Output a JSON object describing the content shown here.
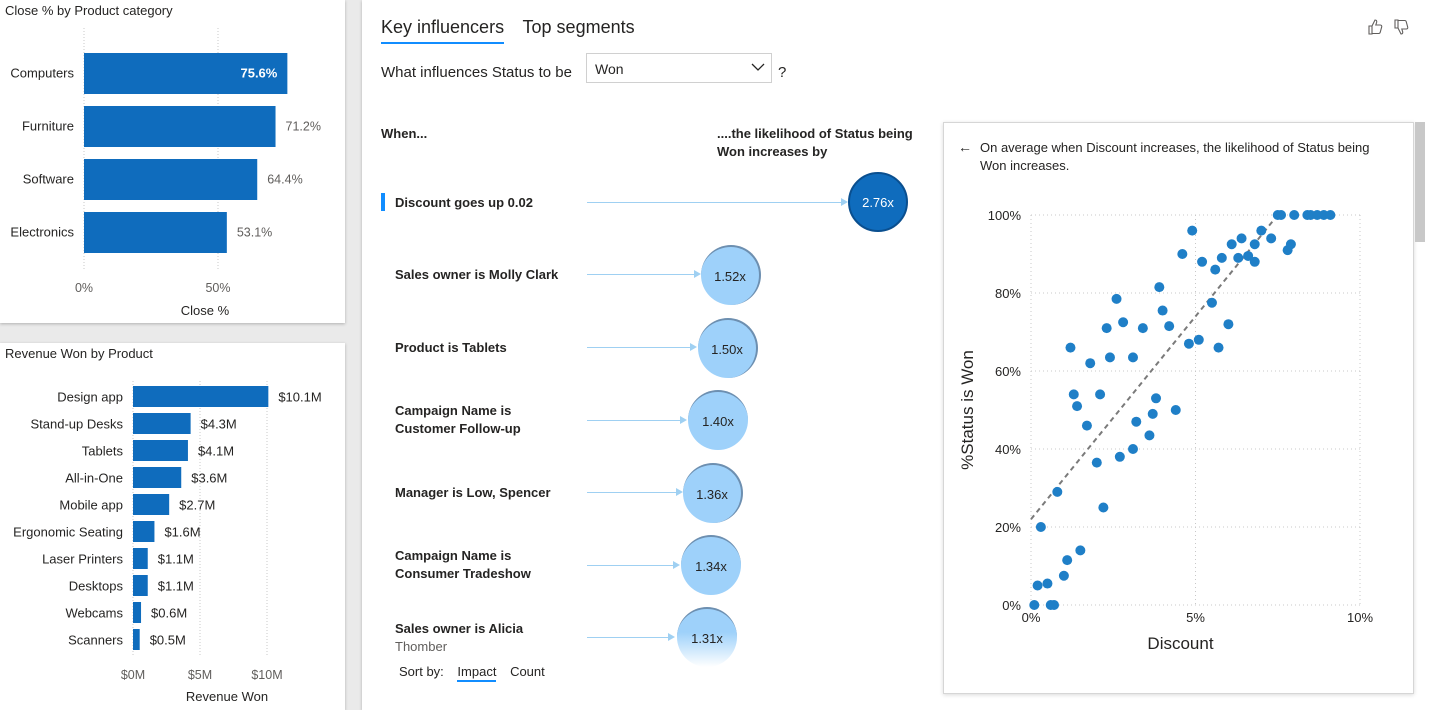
{
  "close_chart": {
    "chart_data": {
      "type": "bar",
      "orientation": "horizontal",
      "title": "Close % by Product category",
      "categories": [
        "Computers",
        "Furniture",
        "Software",
        "Electronics"
      ],
      "values": [
        75.6,
        71.2,
        64.4,
        53.1
      ],
      "value_labels": [
        "75.6%",
        "71.2%",
        "64.4%",
        "53.1%"
      ],
      "xticks": [
        "0%",
        "50%"
      ],
      "xlabel": "Close %",
      "xlim": [
        0,
        100
      ]
    }
  },
  "revenue_chart": {
    "chart_data": {
      "type": "bar",
      "orientation": "horizontal",
      "title": "Revenue Won by Product",
      "categories": [
        "Design app",
        "Stand-up Desks",
        "Tablets",
        "All-in-One",
        "Mobile app",
        "Ergonomic Seating",
        "Laser Printers",
        "Desktops",
        "Webcams",
        "Scanners"
      ],
      "values": [
        10.1,
        4.3,
        4.1,
        3.6,
        2.7,
        1.6,
        1.1,
        1.1,
        0.6,
        0.5
      ],
      "value_labels": [
        "$10.1M",
        "$4.3M",
        "$4.1M",
        "$3.6M",
        "$2.7M",
        "$1.6M",
        "$1.1M",
        "$1.1M",
        "$0.6M",
        "$0.5M"
      ],
      "xticks": [
        "$0M",
        "$5M",
        "$10M"
      ],
      "xlabel": "Revenue Won",
      "xlim": [
        0,
        10.1
      ]
    }
  },
  "key_influencers": {
    "tabs": [
      "Key influencers",
      "Top segments"
    ],
    "question_prefix": "What influences Status to be",
    "selected_value": "Won",
    "question_suffix": "?",
    "when_label": "When...",
    "likelihood_label": "....the likelihood of Status being Won increases by",
    "influencers": [
      {
        "label": "Discount goes up 0.02",
        "sub": "",
        "value": "2.76x",
        "selected": true
      },
      {
        "label": "Sales owner is Molly Clark",
        "sub": "",
        "value": "1.52x",
        "selected": false
      },
      {
        "label": "Product is Tablets",
        "sub": "",
        "value": "1.50x",
        "selected": false
      },
      {
        "label": "Campaign Name is Customer Follow-up",
        "sub": "",
        "value": "1.40x",
        "selected": false
      },
      {
        "label": "Manager is Low, Spencer",
        "sub": "",
        "value": "1.36x",
        "selected": false
      },
      {
        "label": "Campaign Name is Consumer Tradeshow",
        "sub": "",
        "value": "1.34x",
        "selected": false
      },
      {
        "label": "Sales owner is Alicia",
        "sub": "Thomber",
        "value": "1.31x",
        "selected": false
      }
    ],
    "sort_by_label": "Sort by:",
    "sort_options": [
      "Impact",
      "Count"
    ],
    "accent": "#118dff"
  },
  "detail": {
    "description": "On average when Discount increases, the likelihood of Status being Won increases.",
    "chart_data": {
      "type": "scatter",
      "xlabel": "Discount",
      "ylabel": "%Status is Won",
      "xticks": [
        "0%",
        "5%",
        "10%"
      ],
      "yticks": [
        "0%",
        "20%",
        "40%",
        "60%",
        "80%",
        "100%"
      ],
      "xlim": [
        0,
        10
      ],
      "ylim": [
        0,
        100
      ],
      "trendline": [
        [
          0,
          22
        ],
        [
          7.5,
          100
        ]
      ],
      "points": [
        [
          0.1,
          0
        ],
        [
          0.2,
          5
        ],
        [
          0.5,
          5.5
        ],
        [
          0.3,
          20
        ],
        [
          0.6,
          0
        ],
        [
          0.7,
          0
        ],
        [
          0.8,
          29
        ],
        [
          1.0,
          7.5
        ],
        [
          1.1,
          11.5
        ],
        [
          1.2,
          66
        ],
        [
          1.3,
          54
        ],
        [
          1.4,
          51
        ],
        [
          1.5,
          14
        ],
        [
          1.7,
          46
        ],
        [
          1.8,
          62
        ],
        [
          2.0,
          36.5
        ],
        [
          2.1,
          54
        ],
        [
          2.2,
          25
        ],
        [
          2.3,
          71
        ],
        [
          2.4,
          63.5
        ],
        [
          2.6,
          78.5
        ],
        [
          2.7,
          38
        ],
        [
          2.8,
          72.5
        ],
        [
          3.1,
          63.5
        ],
        [
          3.1,
          40
        ],
        [
          3.2,
          47
        ],
        [
          3.4,
          71
        ],
        [
          3.6,
          43.5
        ],
        [
          3.7,
          49
        ],
        [
          3.8,
          53
        ],
        [
          3.9,
          81.5
        ],
        [
          4.0,
          75.5
        ],
        [
          4.2,
          71.5
        ],
        [
          4.4,
          50
        ],
        [
          4.6,
          90
        ],
        [
          4.8,
          67
        ],
        [
          4.9,
          96
        ],
        [
          5.1,
          68
        ],
        [
          5.2,
          88
        ],
        [
          5.5,
          77.5
        ],
        [
          5.6,
          86
        ],
        [
          5.7,
          66
        ],
        [
          5.8,
          89
        ],
        [
          6.0,
          72
        ],
        [
          6.1,
          92.5
        ],
        [
          6.3,
          89
        ],
        [
          6.4,
          94
        ],
        [
          6.6,
          89.5
        ],
        [
          6.8,
          92.5
        ],
        [
          6.8,
          88
        ],
        [
          7.0,
          96
        ],
        [
          7.3,
          94
        ],
        [
          7.5,
          100
        ],
        [
          7.6,
          100
        ],
        [
          7.8,
          91
        ],
        [
          7.9,
          92.5
        ],
        [
          8.0,
          100
        ],
        [
          8.4,
          100
        ],
        [
          8.5,
          100
        ],
        [
          8.7,
          100
        ],
        [
          8.9,
          100
        ],
        [
          9.1,
          100
        ]
      ]
    }
  }
}
